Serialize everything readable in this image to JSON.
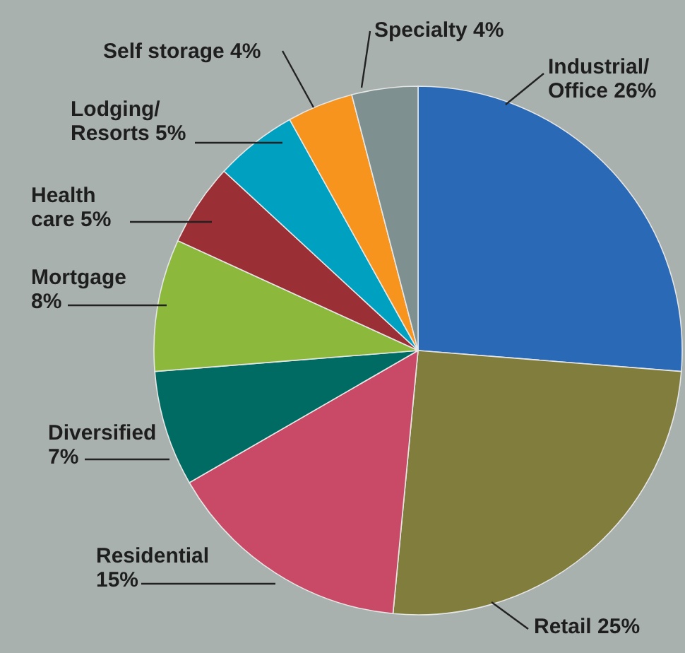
{
  "chart_data": {
    "type": "pie",
    "categories": [
      "Industrial/Office",
      "Retail",
      "Residential",
      "Diversified",
      "Mortgage",
      "Health care",
      "Lodging/Resorts",
      "Self storage",
      "Specialty"
    ],
    "values": [
      26,
      25,
      15,
      7,
      8,
      5,
      5,
      4,
      4
    ],
    "value_labels": [
      "26%",
      "25%",
      "15%",
      "7%",
      "8%",
      "5%",
      "5%",
      "4%",
      "4%"
    ],
    "colors": [
      "#2a69b5",
      "#807d3d",
      "#c84a66",
      "#006b62",
      "#8cb93c",
      "#9a3036",
      "#00a0c0",
      "#f7941d",
      "#7e9190"
    ]
  }
}
